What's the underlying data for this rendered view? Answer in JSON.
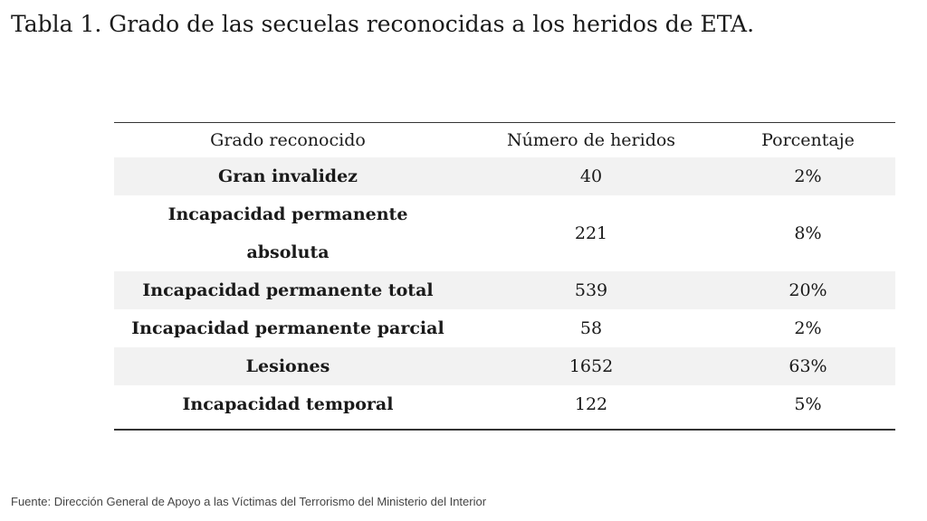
{
  "title": "Tabla 1. Grado de las secuelas reconocidas a los heridos de ETA.",
  "source": "Fuente: Dirección General de Apoyo a las Víctimas del Terrorismo del Ministerio del Interior",
  "chart_data": {
    "type": "table",
    "title": "Tabla 1. Grado de las secuelas reconocidas a los heridos de ETA.",
    "columns": [
      "Grado reconocido",
      "Número de heridos",
      "Porcentaje"
    ],
    "rows": [
      {
        "grade": "Gran invalidez",
        "count": "40",
        "percent": "2%"
      },
      {
        "grade": "Incapacidad permanente absoluta",
        "count": "221",
        "percent": "8%"
      },
      {
        "grade": "Incapacidad permanente total",
        "count": "539",
        "percent": "20%"
      },
      {
        "grade": "Incapacidad permanente parcial",
        "count": "58",
        "percent": "2%"
      },
      {
        "grade": "Lesiones",
        "count": "1652",
        "percent": "63%"
      },
      {
        "grade": "Incapacidad temporal",
        "count": "122",
        "percent": "5%"
      }
    ]
  }
}
